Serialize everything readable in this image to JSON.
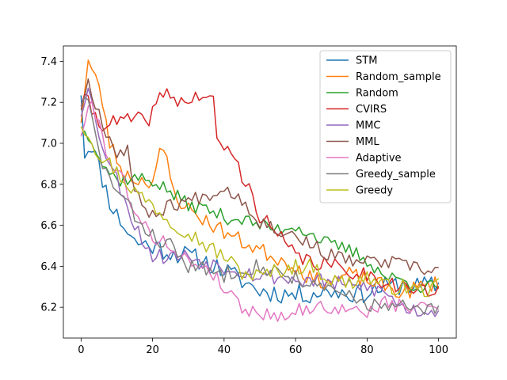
{
  "chart_data": {
    "type": "line",
    "title": "",
    "xlabel": "",
    "ylabel": "",
    "xlim": [
      -4.95,
      104.95
    ],
    "ylim": [
      6.05,
      7.475
    ],
    "xticks": [
      0,
      20,
      40,
      60,
      80,
      100
    ],
    "yticks": [
      6.2,
      6.4,
      6.6,
      6.8,
      7.0,
      7.2,
      7.4
    ],
    "xtick_labels": [
      "0",
      "20",
      "40",
      "60",
      "80",
      "100"
    ],
    "ytick_labels": [
      "6.2",
      "6.4",
      "6.6",
      "6.8",
      "7.0",
      "7.2",
      "7.4"
    ],
    "grid": false,
    "legend_position": "upper right",
    "series": [
      {
        "name": "STM",
        "color": "#1f77b4",
        "anchors": [
          [
            0,
            7.26
          ],
          [
            1,
            6.95
          ],
          [
            3,
            7.0
          ],
          [
            5,
            6.88
          ],
          [
            8,
            6.72
          ],
          [
            10,
            6.65
          ],
          [
            15,
            6.52
          ],
          [
            20,
            6.5
          ],
          [
            25,
            6.47
          ],
          [
            30,
            6.45
          ],
          [
            35,
            6.42
          ],
          [
            40,
            6.38
          ],
          [
            45,
            6.33
          ],
          [
            50,
            6.28
          ],
          [
            55,
            6.27
          ],
          [
            60,
            6.26
          ],
          [
            65,
            6.27
          ],
          [
            70,
            6.28
          ],
          [
            75,
            6.27
          ],
          [
            80,
            6.27
          ],
          [
            85,
            6.3
          ],
          [
            90,
            6.31
          ],
          [
            95,
            6.3
          ],
          [
            100,
            6.31
          ]
        ],
        "amp": 0.05,
        "seed": 11
      },
      {
        "name": "Random_sample",
        "color": "#ff7f0e",
        "anchors": [
          [
            0,
            7.12
          ],
          [
            2,
            7.4
          ],
          [
            4,
            7.32
          ],
          [
            6,
            7.2
          ],
          [
            8,
            7.0
          ],
          [
            12,
            6.85
          ],
          [
            16,
            6.82
          ],
          [
            20,
            6.82
          ],
          [
            22,
            6.95
          ],
          [
            24,
            6.92
          ],
          [
            26,
            6.75
          ],
          [
            30,
            6.68
          ],
          [
            35,
            6.62
          ],
          [
            40,
            6.57
          ],
          [
            45,
            6.52
          ],
          [
            50,
            6.48
          ],
          [
            55,
            6.44
          ],
          [
            60,
            6.4
          ],
          [
            65,
            6.33
          ],
          [
            70,
            6.33
          ],
          [
            75,
            6.36
          ],
          [
            80,
            6.33
          ],
          [
            85,
            6.3
          ],
          [
            90,
            6.27
          ],
          [
            95,
            6.3
          ],
          [
            100,
            6.32
          ]
        ],
        "amp": 0.04,
        "seed": 23
      },
      {
        "name": "Random",
        "color": "#2ca02c",
        "anchors": [
          [
            0,
            7.06
          ],
          [
            3,
            7.03
          ],
          [
            6,
            6.9
          ],
          [
            10,
            6.82
          ],
          [
            15,
            6.83
          ],
          [
            20,
            6.82
          ],
          [
            25,
            6.76
          ],
          [
            30,
            6.7
          ],
          [
            35,
            6.68
          ],
          [
            40,
            6.64
          ],
          [
            45,
            6.63
          ],
          [
            50,
            6.6
          ],
          [
            55,
            6.58
          ],
          [
            60,
            6.6
          ],
          [
            65,
            6.55
          ],
          [
            70,
            6.5
          ],
          [
            75,
            6.48
          ],
          [
            80,
            6.43
          ],
          [
            85,
            6.35
          ],
          [
            90,
            6.33
          ],
          [
            95,
            6.3
          ],
          [
            100,
            6.3
          ]
        ],
        "amp": 0.035,
        "seed": 37
      },
      {
        "name": "CVIRS",
        "color": "#d62728",
        "anchors": [
          [
            0,
            7.2
          ],
          [
            2,
            7.2
          ],
          [
            5,
            7.1
          ],
          [
            10,
            7.1
          ],
          [
            15,
            7.12
          ],
          [
            18,
            7.1
          ],
          [
            20,
            7.15
          ],
          [
            23,
            7.25
          ],
          [
            26,
            7.22
          ],
          [
            30,
            7.2
          ],
          [
            34,
            7.24
          ],
          [
            37,
            7.2
          ],
          [
            38,
            7.0
          ],
          [
            41,
            6.98
          ],
          [
            44,
            6.88
          ],
          [
            46,
            6.8
          ],
          [
            48,
            6.75
          ],
          [
            50,
            6.65
          ],
          [
            55,
            6.55
          ],
          [
            60,
            6.45
          ],
          [
            65,
            6.42
          ],
          [
            70,
            6.4
          ],
          [
            75,
            6.38
          ],
          [
            80,
            6.36
          ],
          [
            85,
            6.33
          ],
          [
            90,
            6.3
          ],
          [
            95,
            6.28
          ],
          [
            100,
            6.27
          ]
        ],
        "amp": 0.04,
        "seed": 41
      },
      {
        "name": "MMC",
        "color": "#9467bd",
        "anchors": [
          [
            0,
            7.15
          ],
          [
            2,
            7.3
          ],
          [
            4,
            7.1
          ],
          [
            8,
            6.9
          ],
          [
            12,
            6.75
          ],
          [
            15,
            6.6
          ],
          [
            20,
            6.45
          ],
          [
            25,
            6.45
          ],
          [
            30,
            6.45
          ],
          [
            35,
            6.42
          ],
          [
            40,
            6.4
          ],
          [
            45,
            6.38
          ],
          [
            50,
            6.35
          ],
          [
            55,
            6.35
          ],
          [
            60,
            6.33
          ],
          [
            65,
            6.33
          ],
          [
            70,
            6.32
          ],
          [
            75,
            6.3
          ],
          [
            80,
            6.3
          ],
          [
            85,
            6.27
          ],
          [
            90,
            6.2
          ],
          [
            95,
            6.18
          ],
          [
            100,
            6.19
          ]
        ],
        "amp": 0.04,
        "seed": 53
      },
      {
        "name": "MML",
        "color": "#8c564b",
        "anchors": [
          [
            0,
            7.18
          ],
          [
            2,
            7.3
          ],
          [
            4,
            7.2
          ],
          [
            6,
            7.1
          ],
          [
            10,
            6.95
          ],
          [
            13,
            6.98
          ],
          [
            15,
            6.75
          ],
          [
            20,
            6.65
          ],
          [
            25,
            6.7
          ],
          [
            30,
            6.72
          ],
          [
            35,
            6.75
          ],
          [
            40,
            6.78
          ],
          [
            44,
            6.75
          ],
          [
            46,
            6.7
          ],
          [
            50,
            6.62
          ],
          [
            55,
            6.58
          ],
          [
            60,
            6.55
          ],
          [
            65,
            6.5
          ],
          [
            70,
            6.45
          ],
          [
            75,
            6.43
          ],
          [
            80,
            6.42
          ],
          [
            85,
            6.42
          ],
          [
            90,
            6.41
          ],
          [
            95,
            6.38
          ],
          [
            100,
            6.38
          ]
        ],
        "amp": 0.035,
        "seed": 67
      },
      {
        "name": "Adaptive",
        "color": "#e377c2",
        "anchors": [
          [
            0,
            7.05
          ],
          [
            3,
            7.2
          ],
          [
            6,
            7.05
          ],
          [
            8,
            6.9
          ],
          [
            12,
            6.82
          ],
          [
            16,
            6.62
          ],
          [
            20,
            6.55
          ],
          [
            25,
            6.5
          ],
          [
            30,
            6.42
          ],
          [
            35,
            6.4
          ],
          [
            40,
            6.3
          ],
          [
            45,
            6.2
          ],
          [
            50,
            6.17
          ],
          [
            55,
            6.16
          ],
          [
            60,
            6.18
          ],
          [
            65,
            6.2
          ],
          [
            70,
            6.2
          ],
          [
            75,
            6.18
          ],
          [
            80,
            6.18
          ],
          [
            85,
            6.22
          ],
          [
            90,
            6.2
          ],
          [
            95,
            6.2
          ],
          [
            100,
            6.21
          ]
        ],
        "amp": 0.035,
        "seed": 79
      },
      {
        "name": "Greedy_sample",
        "color": "#7f7f7f",
        "anchors": [
          [
            0,
            7.2
          ],
          [
            2,
            7.2
          ],
          [
            5,
            6.95
          ],
          [
            8,
            6.82
          ],
          [
            12,
            6.72
          ],
          [
            16,
            6.62
          ],
          [
            20,
            6.55
          ],
          [
            25,
            6.5
          ],
          [
            30,
            6.4
          ],
          [
            35,
            6.38
          ],
          [
            40,
            6.36
          ],
          [
            45,
            6.4
          ],
          [
            50,
            6.4
          ],
          [
            55,
            6.37
          ],
          [
            60,
            6.35
          ],
          [
            65,
            6.3
          ],
          [
            70,
            6.28
          ],
          [
            75,
            6.25
          ],
          [
            80,
            6.22
          ],
          [
            85,
            6.2
          ],
          [
            90,
            6.2
          ],
          [
            95,
            6.18
          ],
          [
            100,
            6.19
          ]
        ],
        "amp": 0.04,
        "seed": 83
      },
      {
        "name": "Greedy",
        "color": "#bcbd22",
        "anchors": [
          [
            0,
            7.1
          ],
          [
            2,
            7.05
          ],
          [
            5,
            6.95
          ],
          [
            8,
            6.9
          ],
          [
            12,
            6.82
          ],
          [
            16,
            6.75
          ],
          [
            20,
            6.7
          ],
          [
            25,
            6.62
          ],
          [
            30,
            6.57
          ],
          [
            35,
            6.5
          ],
          [
            40,
            6.45
          ],
          [
            45,
            6.37
          ],
          [
            50,
            6.35
          ],
          [
            55,
            6.38
          ],
          [
            60,
            6.4
          ],
          [
            65,
            6.4
          ],
          [
            70,
            6.33
          ],
          [
            75,
            6.32
          ],
          [
            80,
            6.35
          ],
          [
            85,
            6.3
          ],
          [
            90,
            6.3
          ],
          [
            95,
            6.28
          ],
          [
            100,
            6.3
          ]
        ],
        "amp": 0.04,
        "seed": 97
      }
    ]
  }
}
